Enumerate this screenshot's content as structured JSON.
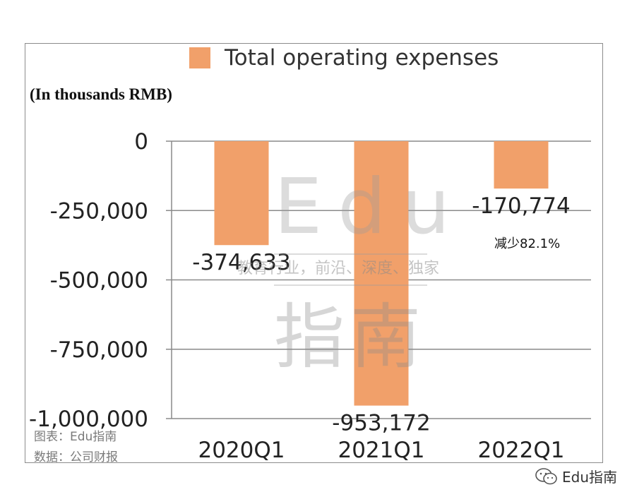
{
  "chart_data": {
    "type": "bar",
    "categories": [
      "2020Q1",
      "2021Q1",
      "2022Q1"
    ],
    "series": [
      {
        "name": "Total operating expenses",
        "values": [
          -374633,
          -953172,
          -170774
        ]
      }
    ],
    "data_labels": [
      "-374,633",
      "-953,172",
      "-170,774"
    ],
    "ylabel": "(In thousands RMB)",
    "yticks": [
      0,
      -250000,
      -500000,
      -750000,
      -1000000
    ],
    "ytick_labels": [
      "0",
      "-250,000",
      "-500,000",
      "-750,000",
      "-1,000,000"
    ],
    "ylim": [
      -1000000,
      0
    ],
    "grid": true,
    "legend_placement": "top",
    "annotation": "减少82.1%",
    "bar_color": "#f1a06a",
    "grid_color": "#8a8a8a"
  },
  "sources": {
    "line1": "图表：Edu指南",
    "line2": "数据：公司财报"
  },
  "watermark": {
    "latin": "Edu",
    "tagline": "教育行业，前沿、深度、独家",
    "cjk": "指南"
  },
  "credit": {
    "icon": "wechat-icon",
    "text": "Edu指南"
  }
}
